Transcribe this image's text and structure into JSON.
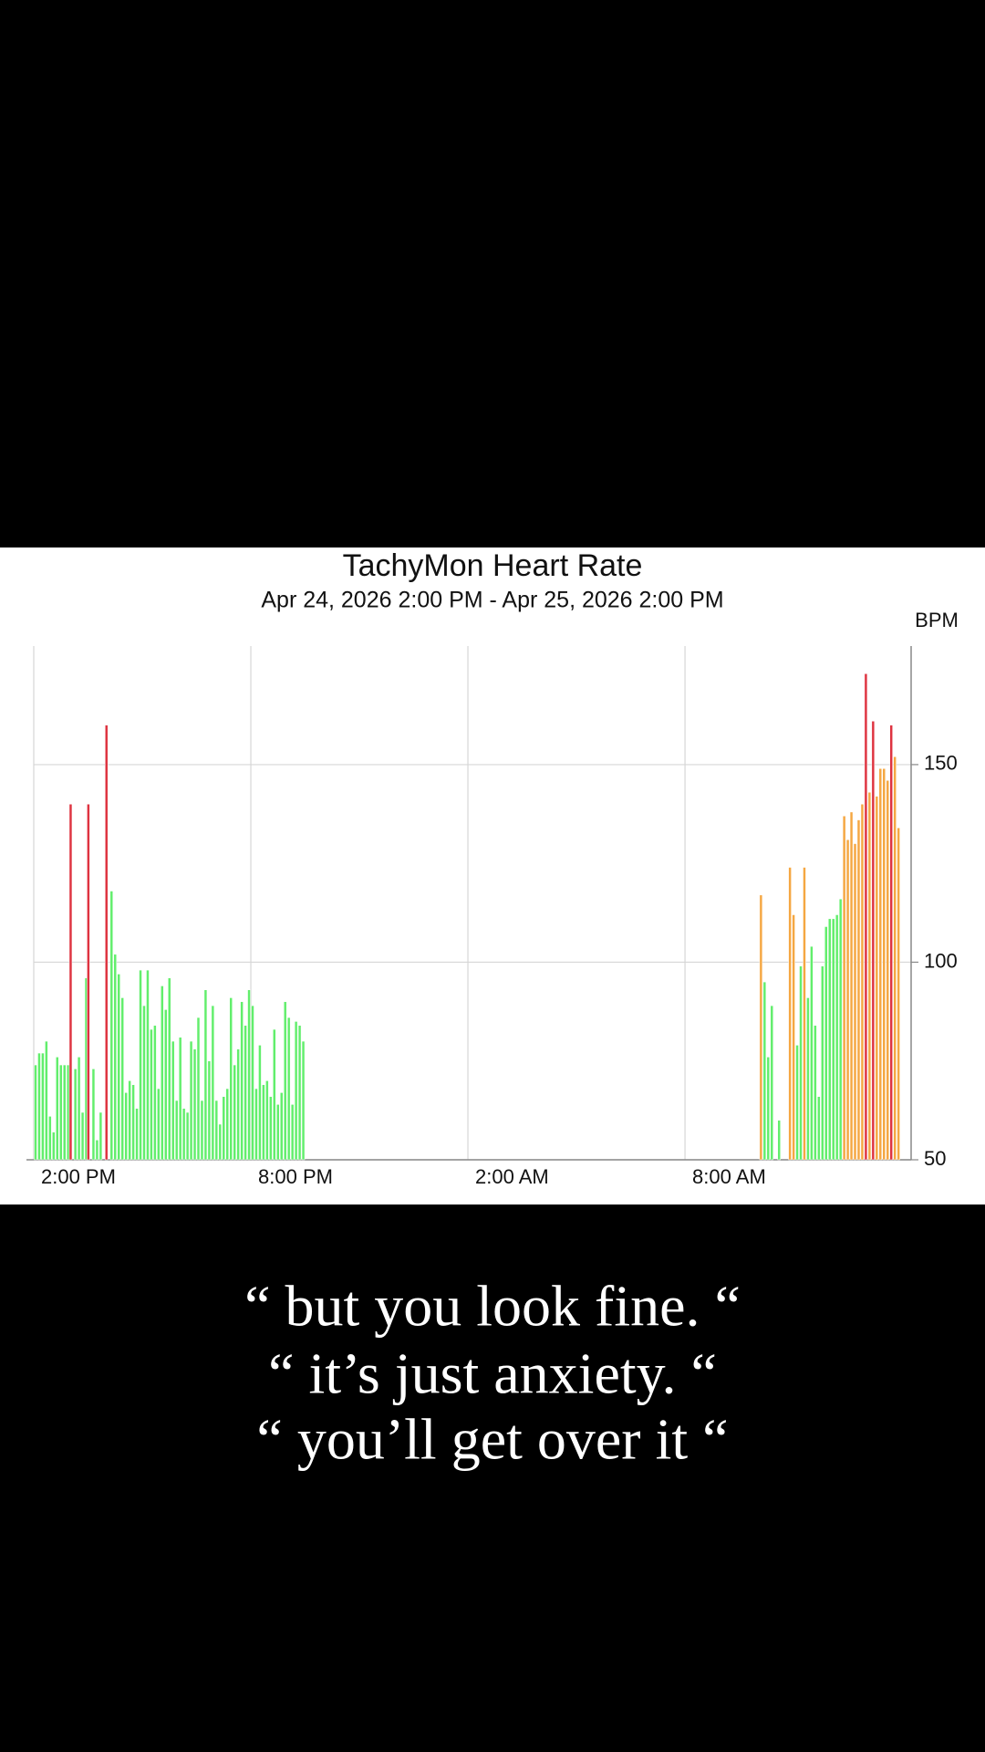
{
  "chart_data": {
    "type": "bar",
    "title": "TachyMon Heart Rate",
    "subtitle": "Apr 24, 2026 2:00 PM - Apr 25, 2026 2:00 PM",
    "y_label": "BPM",
    "xlim": [
      0,
      24.25
    ],
    "xticks": [
      {
        "value": 0,
        "label": "2:00 PM"
      },
      {
        "value": 6,
        "label": "8:00 PM"
      },
      {
        "value": 12,
        "label": "2:00 AM"
      },
      {
        "value": 18,
        "label": "8:00 AM"
      }
    ],
    "ylim": [
      50,
      180
    ],
    "yticks": [
      50,
      100,
      150
    ],
    "grid": true,
    "series": [
      {
        "color": "#62ee6c",
        "x": [
          0.05,
          0.15,
          0.25,
          0.35,
          0.45,
          0.55,
          0.65,
          0.75,
          0.85,
          0.95,
          1.15,
          1.25,
          1.35,
          1.45,
          1.65,
          1.75,
          1.85,
          2.15,
          2.25,
          2.35,
          2.45,
          2.55,
          2.65,
          2.75,
          2.85,
          2.95,
          3.05,
          3.15,
          3.25,
          3.35,
          3.45,
          3.55,
          3.65,
          3.75,
          3.85,
          3.95,
          4.05,
          4.15,
          4.25,
          4.35,
          4.45,
          4.55,
          4.65,
          4.75,
          4.85,
          4.95,
          5.05,
          5.15,
          5.25,
          5.35,
          5.45,
          5.55,
          5.65,
          5.75,
          5.85,
          5.95,
          6.05,
          6.15,
          6.25,
          6.35,
          6.45,
          6.55,
          6.65,
          6.75,
          6.85,
          6.95,
          7.05,
          7.15,
          7.25,
          7.35,
          7.45,
          20.2,
          20.3,
          20.4,
          20.6,
          21.1,
          21.2,
          21.4,
          21.5,
          21.6,
          21.7,
          21.8,
          21.9,
          22.0,
          22.1,
          22.2,
          22.3
        ],
        "values": [
          74,
          77,
          77,
          80,
          61,
          57,
          76,
          74,
          74,
          74,
          73,
          76,
          62,
          96,
          73,
          55,
          62,
          118,
          102,
          97,
          91,
          67,
          70,
          69,
          63,
          98,
          89,
          98,
          83,
          84,
          68,
          94,
          88,
          96,
          80,
          65,
          81,
          63,
          62,
          80,
          78,
          86,
          65,
          93,
          75,
          89,
          65,
          59,
          66,
          68,
          91,
          74,
          78,
          90,
          84,
          93,
          89,
          68,
          79,
          69,
          70,
          66,
          83,
          64,
          67,
          90,
          86,
          64,
          85,
          84,
          80,
          95,
          76,
          89,
          60,
          79,
          99,
          91,
          104,
          84,
          66,
          99,
          109,
          111,
          111,
          112,
          116
        ]
      },
      {
        "color": "#f5a742",
        "x": [
          20.1,
          20.9,
          21.0,
          21.3,
          22.4,
          22.5,
          22.6,
          22.7,
          22.8,
          22.9,
          23.1,
          23.3,
          23.4,
          23.5,
          23.6,
          23.8,
          23.9
        ],
        "values": [
          117,
          124,
          112,
          124,
          137,
          131,
          138,
          130,
          136,
          140,
          143,
          142,
          149,
          149,
          146,
          152,
          134
        ]
      },
      {
        "color": "#de3340",
        "x": [
          1.02,
          1.51,
          2.01,
          23.0,
          23.2,
          23.7
        ],
        "values": [
          140,
          140,
          160,
          173,
          161,
          160
        ]
      }
    ]
  },
  "caption": {
    "lines": [
      "“ but you look fine. “",
      "“ it’s just anxiety. “",
      "“ you’ll get over it “"
    ]
  }
}
